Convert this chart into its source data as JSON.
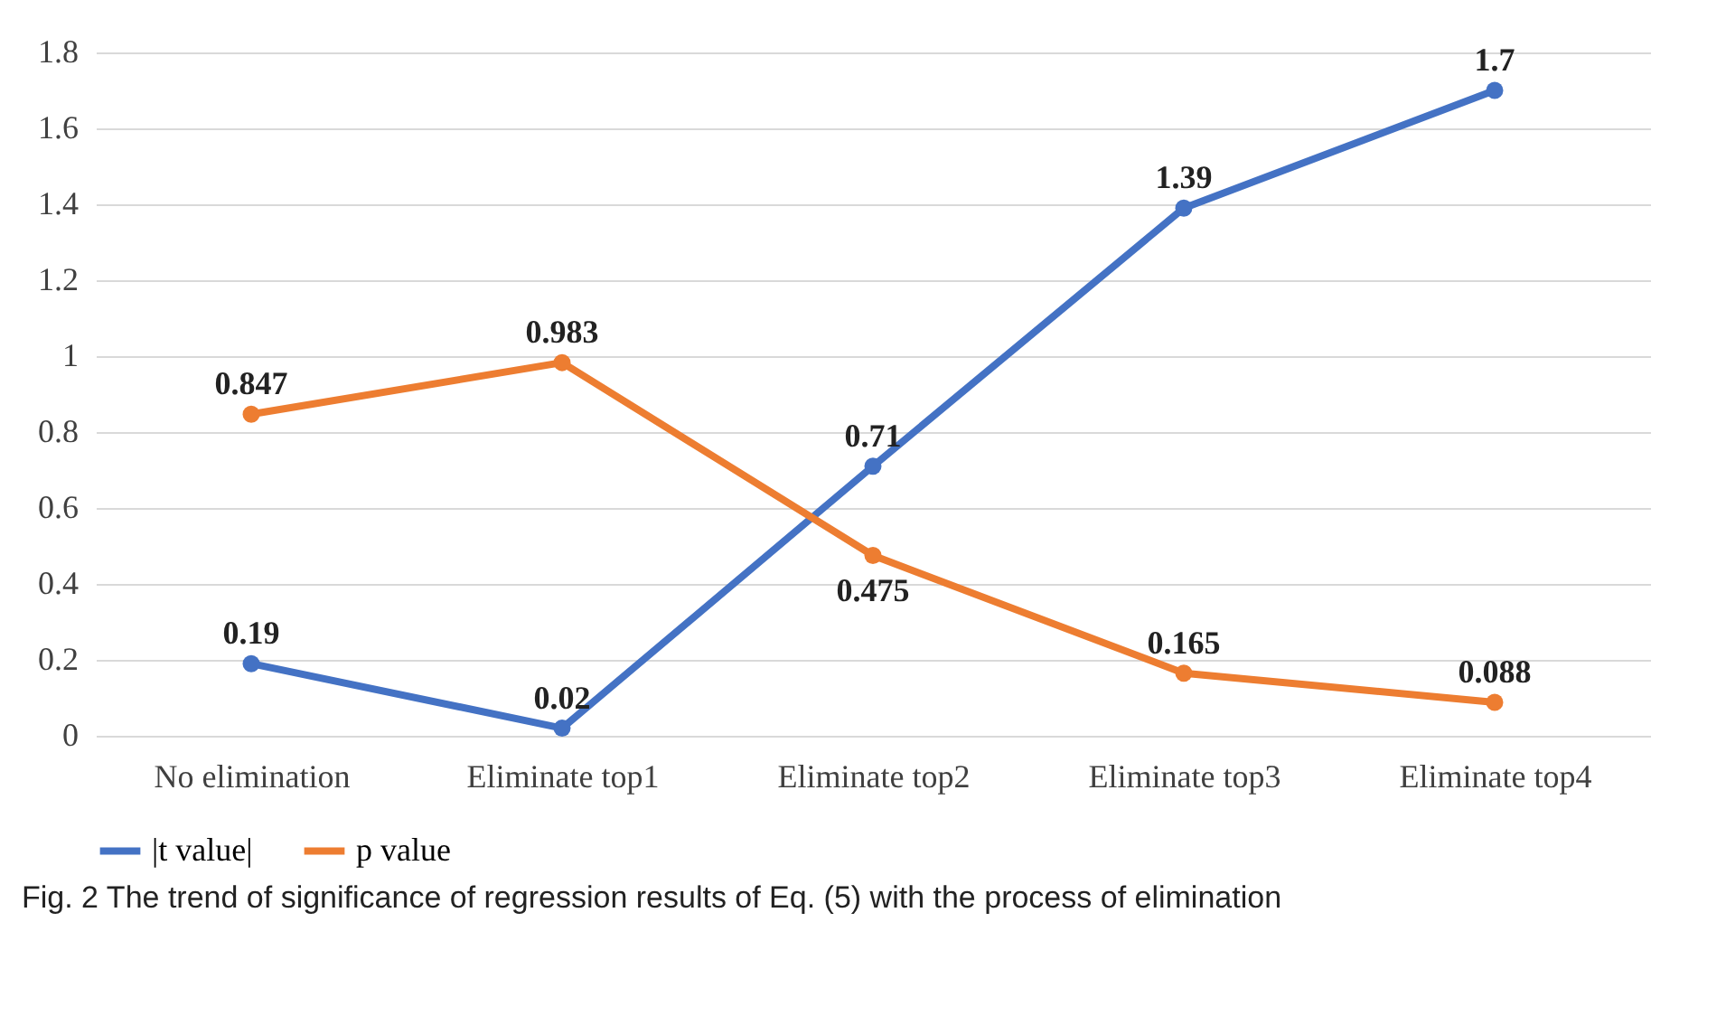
{
  "chart_data": {
    "type": "line",
    "categories": [
      "No elimination",
      "Eliminate top1",
      "Eliminate top2",
      "Eliminate top3",
      "Eliminate top4"
    ],
    "series": [
      {
        "name": "|t value|",
        "color": "#4472c4",
        "values": [
          0.19,
          0.02,
          0.71,
          1.39,
          1.7
        ]
      },
      {
        "name": "p value",
        "color": "#ed7d31",
        "values": [
          0.847,
          0.983,
          0.475,
          0.165,
          0.088
        ]
      }
    ],
    "ylim": [
      0,
      1.8
    ],
    "yticks": [
      0,
      0.2,
      0.4,
      0.6,
      0.8,
      1,
      1.2,
      1.4,
      1.6,
      1.8
    ],
    "grid": "y",
    "legend": "bottom",
    "marker": "circle",
    "line_style": "solid",
    "data_labels": true,
    "annotations": [
      "Fig. 2 The trend of significance of regression results of Eq. (5) with the process of elimination"
    ]
  }
}
